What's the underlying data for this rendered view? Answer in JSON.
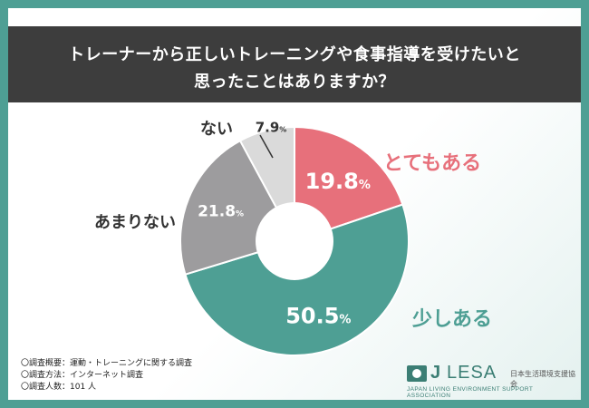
{
  "header": {
    "title_line1": "トレーナーから正しいトレーニングや食事指導を受けたいと",
    "title_line2": "思ったことはありますか？"
  },
  "chart_data": {
    "type": "pie",
    "slices": [
      {
        "label": "とてもある",
        "value": 19.8,
        "value_text": "19.8",
        "unit": "%",
        "color": "#e7707b",
        "label_color": "#e7707b"
      },
      {
        "label": "少しある",
        "value": 50.5,
        "value_text": "50.5",
        "unit": "%",
        "color": "#4e9f94",
        "label_color": "#4e9f94"
      },
      {
        "label": "あまりない",
        "value": 21.8,
        "value_text": "21.8",
        "unit": "%",
        "color": "#9d9c9e",
        "label_color": "#333333"
      },
      {
        "label": "ない",
        "value": 7.9,
        "value_text": "7.9",
        "unit": "%",
        "color": "#dadada",
        "label_color": "#333333"
      }
    ],
    "donut": true
  },
  "footnotes": [
    "〇調査概要：運動・トレーニングに関する調査",
    "〇調査方法：インターネット調査",
    "〇調査人数：101 人"
  ],
  "logo": {
    "mark": "J",
    "name": "LESA",
    "jp_name": "日本生活環境支援協会",
    "en_name": "JAPAN LIVING ENVIRONMENT SUPPORT ASSOCIATION"
  },
  "colors": {
    "frame": "#4e9f94",
    "title_bg": "#3d3d3d"
  }
}
